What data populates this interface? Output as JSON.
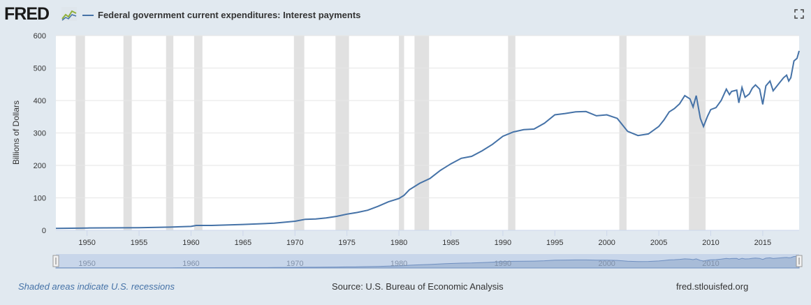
{
  "header": {
    "logo_text": "FRED",
    "logo_icon": "fred-chart-icon",
    "legend_label": "Federal government current expenditures: Interest payments",
    "fullscreen_icon": "fullscreen-icon"
  },
  "footer": {
    "recession_note": "Shaded areas indicate U.S. recessions",
    "source": "Source: U.S. Bureau of Economic Analysis",
    "site": "fred.stlouisfed.org"
  },
  "colors": {
    "series": "#4572a7",
    "recession": "#e1e1e1",
    "background": "#e1e9f0",
    "plot": "#ffffff",
    "navigator": "#a8bcd8"
  },
  "chart_data": {
    "type": "line",
    "title": "",
    "xlabel": "",
    "ylabel": "Billions of Dollars",
    "xlim": [
      1947,
      2018.5
    ],
    "ylim": [
      0,
      600
    ],
    "yticks": [
      0,
      100,
      200,
      300,
      400,
      500,
      600
    ],
    "xticks": [
      1950,
      1955,
      1960,
      1965,
      1970,
      1975,
      1980,
      1985,
      1990,
      1995,
      2000,
      2005,
      2010,
      2015
    ],
    "navigator_ticks": [
      1950,
      1960,
      1970,
      1980,
      1990,
      2000,
      2010
    ],
    "grid": true,
    "recessions": [
      [
        1948.9,
        1949.8
      ],
      [
        1953.5,
        1954.3
      ],
      [
        1957.6,
        1958.3
      ],
      [
        1960.3,
        1961.1
      ],
      [
        1969.9,
        1970.9
      ],
      [
        1973.9,
        1975.2
      ],
      [
        1980.0,
        1980.5
      ],
      [
        1981.5,
        1982.9
      ],
      [
        1990.5,
        1991.2
      ],
      [
        2001.2,
        2001.9
      ],
      [
        2007.9,
        2009.5
      ]
    ],
    "series": [
      {
        "values": [
          [
            1947,
            6
          ],
          [
            1950,
            7
          ],
          [
            1955,
            8
          ],
          [
            1958,
            10
          ],
          [
            1960,
            12
          ],
          [
            1960.5,
            15
          ],
          [
            1962,
            15
          ],
          [
            1965,
            18
          ],
          [
            1968,
            22
          ],
          [
            1970,
            28
          ],
          [
            1971,
            34
          ],
          [
            1972,
            35
          ],
          [
            1973,
            38
          ],
          [
            1974,
            43
          ],
          [
            1975,
            50
          ],
          [
            1976,
            55
          ],
          [
            1977,
            62
          ],
          [
            1978,
            74
          ],
          [
            1979,
            88
          ],
          [
            1980,
            98
          ],
          [
            1980.5,
            108
          ],
          [
            1981,
            125
          ],
          [
            1982,
            145
          ],
          [
            1983,
            160
          ],
          [
            1984,
            185
          ],
          [
            1985,
            205
          ],
          [
            1986,
            222
          ],
          [
            1987,
            228
          ],
          [
            1988,
            245
          ],
          [
            1989,
            265
          ],
          [
            1990,
            290
          ],
          [
            1991,
            303
          ],
          [
            1992,
            310
          ],
          [
            1993,
            312
          ],
          [
            1994,
            330
          ],
          [
            1995,
            356
          ],
          [
            1996,
            360
          ],
          [
            1997,
            365
          ],
          [
            1998,
            366
          ],
          [
            1999,
            353
          ],
          [
            2000,
            356
          ],
          [
            2001,
            345
          ],
          [
            2002,
            305
          ],
          [
            2003,
            292
          ],
          [
            2004,
            297
          ],
          [
            2005,
            320
          ],
          [
            2005.5,
            340
          ],
          [
            2006,
            365
          ],
          [
            2006.5,
            375
          ],
          [
            2007,
            390
          ],
          [
            2007.5,
            415
          ],
          [
            2008,
            405
          ],
          [
            2008.3,
            380
          ],
          [
            2008.6,
            415
          ],
          [
            2009,
            345
          ],
          [
            2009.3,
            320
          ],
          [
            2009.7,
            352
          ],
          [
            2010,
            372
          ],
          [
            2010.5,
            378
          ],
          [
            2011,
            400
          ],
          [
            2011.5,
            435
          ],
          [
            2011.8,
            418
          ],
          [
            2012,
            428
          ],
          [
            2012.5,
            432
          ],
          [
            2012.7,
            393
          ],
          [
            2013,
            440
          ],
          [
            2013.3,
            410
          ],
          [
            2013.7,
            420
          ],
          [
            2014,
            438
          ],
          [
            2014.3,
            448
          ],
          [
            2014.7,
            435
          ],
          [
            2015,
            388
          ],
          [
            2015.3,
            445
          ],
          [
            2015.7,
            460
          ],
          [
            2016,
            430
          ],
          [
            2016.5,
            450
          ],
          [
            2017,
            470
          ],
          [
            2017.3,
            478
          ],
          [
            2017.5,
            460
          ],
          [
            2017.7,
            470
          ],
          [
            2018,
            522
          ],
          [
            2018.3,
            530
          ],
          [
            2018.5,
            553
          ]
        ]
      }
    ]
  }
}
